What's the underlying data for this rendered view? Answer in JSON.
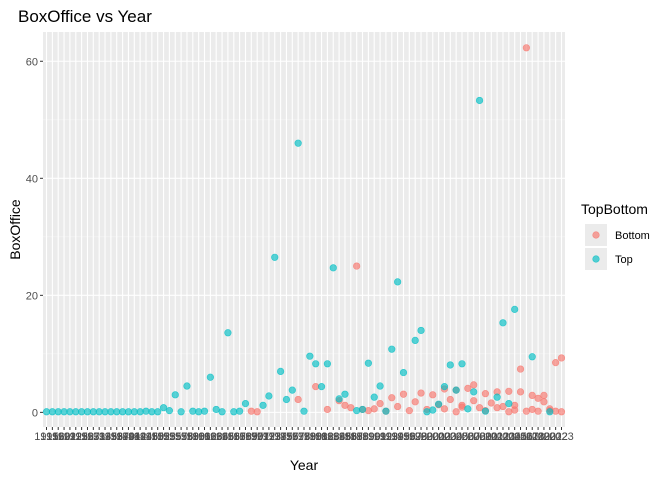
{
  "chart_data": {
    "type": "scatter",
    "title": "BoxOffice vs Year",
    "xlabel": "Year",
    "ylabel": "BoxOffice",
    "x_is_categorical": true,
    "x_tick_labels": [
      "1915",
      "1916",
      "1920",
      "1921",
      "1922",
      "1925",
      "1926",
      "1927",
      "1931",
      "1934",
      "1935",
      "1936",
      "1937",
      "1940",
      "1941",
      "1942",
      "1944",
      "1946",
      "1950",
      "1952",
      "1953",
      "1955",
      "1957",
      "1958",
      "1959",
      "1960",
      "1961",
      "1962",
      "1963",
      "1964",
      "1965",
      "1966",
      "1967",
      "1968",
      "1969",
      "1970",
      "1971",
      "1972",
      "1973",
      "1974",
      "1975",
      "1976",
      "1977",
      "1978",
      "1979",
      "1980",
      "1981",
      "1982",
      "1983",
      "1984",
      "1985",
      "1986",
      "1987",
      "1988",
      "1989",
      "1990",
      "1991",
      "1992",
      "1993",
      "1994",
      "1995",
      "1996",
      "1997",
      "1998",
      "1999",
      "2000",
      "2001",
      "2002",
      "2003",
      "2004",
      "2005",
      "2006",
      "2007",
      "2008",
      "2009",
      "2010",
      "2011",
      "2012",
      "2013",
      "2014",
      "2015",
      "2016",
      "2017",
      "2018",
      "2019",
      "2020",
      "2021",
      "2022",
      "2023"
    ],
    "ylim": [
      -2.5,
      65
    ],
    "y_ticks": [
      0,
      20,
      40,
      60
    ],
    "grid": true,
    "legend": {
      "title": "TopBottom",
      "position": "right"
    },
    "series": [
      {
        "name": "Bottom",
        "color": "#F8766D",
        "points": [
          [
            "1970",
            0.2
          ],
          [
            "1971",
            0.1
          ],
          [
            "1978",
            2.2
          ],
          [
            "1981",
            4.4
          ],
          [
            "1983",
            0.5
          ],
          [
            "1985",
            2
          ],
          [
            "1986",
            1.2
          ],
          [
            "1987",
            0.8
          ],
          [
            "1988",
            25
          ],
          [
            "1989",
            0.5
          ],
          [
            "1990",
            0.3
          ],
          [
            "1991",
            0.6
          ],
          [
            "1992",
            1.5
          ],
          [
            "1993",
            0.2
          ],
          [
            "1994",
            2.5
          ],
          [
            "1995",
            1.0
          ],
          [
            "1996",
            3.1
          ],
          [
            "1997",
            0.3
          ],
          [
            "1998",
            1.8
          ],
          [
            "1999",
            3.3
          ],
          [
            "2000",
            0.5
          ],
          [
            "2001",
            3.0
          ],
          [
            "2002",
            1.3
          ],
          [
            "2003",
            4.0
          ],
          [
            "2004",
            2.2
          ],
          [
            "2005",
            3.8
          ],
          [
            "2006",
            1.2
          ],
          [
            "2007",
            4.1
          ],
          [
            "2008",
            4.7
          ],
          [
            "2009",
            0.8
          ],
          [
            "2010",
            3.2
          ],
          [
            "2011",
            1.6
          ],
          [
            "2012",
            3.5
          ],
          [
            "2013",
            1.0
          ],
          [
            "2014",
            3.6
          ],
          [
            "2015",
            0.4
          ],
          [
            "2016",
            7.4
          ],
          [
            "2017",
            62.3
          ],
          [
            "2018",
            2.9
          ],
          [
            "2019",
            0.2
          ],
          [
            "2020",
            1.8
          ],
          [
            "2021",
            0.6
          ],
          [
            "2022",
            8.5
          ],
          [
            "2023",
            9.3
          ],
          [
            "2012",
            0.8
          ],
          [
            "2010",
            0.3
          ],
          [
            "2008",
            2.0
          ],
          [
            "2006",
            0.9
          ],
          [
            "2017",
            0.2
          ],
          [
            "2021",
            0.3
          ],
          [
            "2015",
            1.2
          ],
          [
            "2019",
            2.4
          ],
          [
            "2022",
            0.2
          ],
          [
            "2003",
            0.6
          ],
          [
            "2005",
            0.1
          ],
          [
            "2023",
            0.1
          ],
          [
            "2016",
            3.5
          ],
          [
            "2018",
            0.5
          ],
          [
            "2020",
            2.9
          ],
          [
            "2014",
            0.1
          ]
        ]
      },
      {
        "name": "Top",
        "color": "#00BFC4",
        "points": [
          [
            "1915",
            0.1
          ],
          [
            "1916",
            0.1
          ],
          [
            "1920",
            0.1
          ],
          [
            "1921",
            0.1
          ],
          [
            "1922",
            0.1
          ],
          [
            "1925",
            0.1
          ],
          [
            "1926",
            0.1
          ],
          [
            "1927",
            0.1
          ],
          [
            "1931",
            0.1
          ],
          [
            "1934",
            0.1
          ],
          [
            "1935",
            0.1
          ],
          [
            "1936",
            0.1
          ],
          [
            "1937",
            0.1
          ],
          [
            "1940",
            0.1
          ],
          [
            "1941",
            0.1
          ],
          [
            "1942",
            0.1
          ],
          [
            "1944",
            0.1
          ],
          [
            "1946",
            0.2
          ],
          [
            "1950",
            0.1
          ],
          [
            "1952",
            0.1
          ],
          [
            "1953",
            0.8
          ],
          [
            "1955",
            0.3
          ],
          [
            "1957",
            3.0
          ],
          [
            "1958",
            0.1
          ],
          [
            "1959",
            4.5
          ],
          [
            "1960",
            0.2
          ],
          [
            "1961",
            0.1
          ],
          [
            "1962",
            0.2
          ],
          [
            "1963",
            6.0
          ],
          [
            "1964",
            0.5
          ],
          [
            "1965",
            0.1
          ],
          [
            "1966",
            13.6
          ],
          [
            "1967",
            0.1
          ],
          [
            "1968",
            0.2
          ],
          [
            "1969",
            1.5
          ],
          [
            "1972",
            1.2
          ],
          [
            "1973",
            2.8
          ],
          [
            "1974",
            26.5
          ],
          [
            "1975",
            7.0
          ],
          [
            "1976",
            2.2
          ],
          [
            "1977",
            3.8
          ],
          [
            "1978",
            46.0
          ],
          [
            "1979",
            0.2
          ],
          [
            "1980",
            9.6
          ],
          [
            "1981",
            8.3
          ],
          [
            "1982",
            4.4
          ],
          [
            "1983",
            8.3
          ],
          [
            "1984",
            24.7
          ],
          [
            "1985",
            2.3
          ],
          [
            "1986",
            3.1
          ],
          [
            "1988",
            0.3
          ],
          [
            "1989",
            0.5
          ],
          [
            "1990",
            8.4
          ],
          [
            "1991",
            2.6
          ],
          [
            "1992",
            4.5
          ],
          [
            "1993",
            0.2
          ],
          [
            "1994",
            10.8
          ],
          [
            "1995",
            22.3
          ],
          [
            "1996",
            6.8
          ],
          [
            "1998",
            12.3
          ],
          [
            "1999",
            14.0
          ],
          [
            "2000",
            0.1
          ],
          [
            "2001",
            0.4
          ],
          [
            "2002",
            1.4
          ],
          [
            "2003",
            4.4
          ],
          [
            "2004",
            8.1
          ],
          [
            "2005",
            3.8
          ],
          [
            "2006",
            8.3
          ],
          [
            "2007",
            0.6
          ],
          [
            "2008",
            3.5
          ],
          [
            "2009",
            53.3
          ],
          [
            "2010",
            0.2
          ],
          [
            "2012",
            2.6
          ],
          [
            "2013",
            15.3
          ],
          [
            "2014",
            1.5
          ],
          [
            "2015",
            17.6
          ],
          [
            "2018",
            9.5
          ],
          [
            "2021",
            0.1
          ]
        ]
      }
    ]
  }
}
